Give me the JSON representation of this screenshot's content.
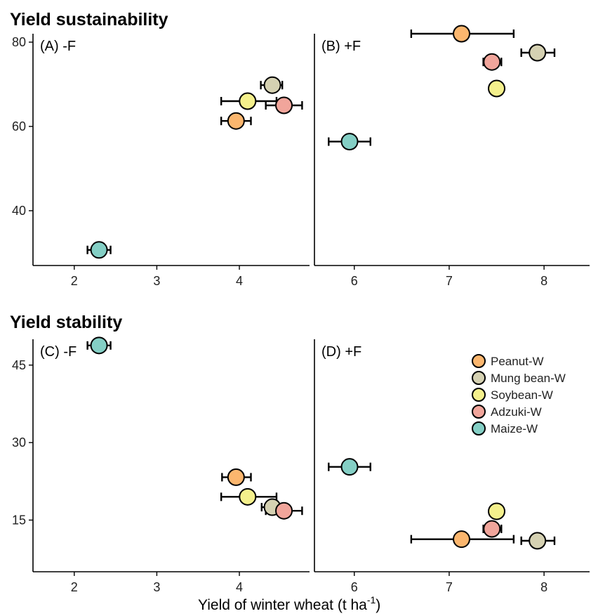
{
  "colors": {
    "Peanut-W": "#FBB66E",
    "Mung bean-W": "#D5D1B2",
    "Soybean-W": "#F4F08C",
    "Adzuki-W": "#F1A59B",
    "Maize-W": "#84CFC5"
  },
  "x_axis_label": {
    "main": "Yield of winter wheat (t ha",
    "sup": "-1",
    "close": ")"
  },
  "legend": [
    "Peanut-W",
    "Mung bean-W",
    "Soybean-W",
    "Adzuki-W",
    "Maize-W"
  ],
  "chart_data": [
    {
      "type": "scatter",
      "section_title": "Yield sustainability",
      "panel_label": "(A) -F",
      "xlim": [
        1.5,
        4.85
      ],
      "ylim": [
        27,
        82
      ],
      "xticks": [
        2,
        3,
        4
      ],
      "yticks": [
        40,
        60,
        80
      ],
      "series": [
        {
          "name": "Peanut-W",
          "x": 3.96,
          "y": 61.3,
          "xerr": [
            3.78,
            4.14
          ]
        },
        {
          "name": "Mung bean-W",
          "x": 4.4,
          "y": 69.8,
          "xerr": [
            4.26,
            4.52
          ]
        },
        {
          "name": "Soybean-W",
          "x": 4.1,
          "y": 66.0,
          "xerr": [
            3.78,
            4.45
          ]
        },
        {
          "name": "Adzuki-W",
          "x": 4.54,
          "y": 65.0,
          "xerr": [
            4.32,
            4.76
          ]
        },
        {
          "name": "Maize-W",
          "x": 2.3,
          "y": 30.7,
          "xerr": [
            2.16,
            2.44
          ]
        }
      ]
    },
    {
      "type": "scatter",
      "section_title": "",
      "panel_label": "(B) +F",
      "xlim": [
        5.58,
        8.48
      ],
      "ylim": [
        27,
        82
      ],
      "xticks": [
        6,
        7,
        8
      ],
      "yticks": [],
      "series": [
        {
          "name": "Peanut-W",
          "x": 7.13,
          "y": 82.0,
          "xerr": [
            6.6,
            7.68
          ]
        },
        {
          "name": "Mung bean-W",
          "x": 7.93,
          "y": 77.5,
          "xerr": [
            7.76,
            8.11
          ]
        },
        {
          "name": "Soybean-W",
          "x": 7.5,
          "y": 69.0,
          "xerr": [
            7.44,
            7.55
          ]
        },
        {
          "name": "Adzuki-W",
          "x": 7.45,
          "y": 75.3,
          "xerr": [
            7.36,
            7.55
          ]
        },
        {
          "name": "Maize-W",
          "x": 5.95,
          "y": 56.4,
          "xerr": [
            5.73,
            6.17
          ]
        }
      ]
    },
    {
      "type": "scatter",
      "section_title": "Yield stability",
      "panel_label": "(C) -F",
      "xlim": [
        1.5,
        4.85
      ],
      "ylim": [
        5,
        50
      ],
      "xticks": [
        2,
        3,
        4
      ],
      "yticks": [
        15,
        30,
        45
      ],
      "series": [
        {
          "name": "Peanut-W",
          "x": 3.96,
          "y": 23.3,
          "xerr": [
            3.79,
            4.14
          ]
        },
        {
          "name": "Mung bean-W",
          "x": 4.4,
          "y": 17.5,
          "xerr": [
            4.27,
            4.55
          ]
        },
        {
          "name": "Soybean-W",
          "x": 4.1,
          "y": 19.5,
          "xerr": [
            3.78,
            4.45
          ]
        },
        {
          "name": "Adzuki-W",
          "x": 4.54,
          "y": 16.8,
          "xerr": [
            4.32,
            4.76
          ]
        },
        {
          "name": "Maize-W",
          "x": 2.3,
          "y": 48.8,
          "xerr": [
            2.16,
            2.44
          ]
        }
      ]
    },
    {
      "type": "scatter",
      "section_title": "",
      "panel_label": "(D) +F",
      "xlim": [
        5.58,
        8.48
      ],
      "ylim": [
        5,
        50
      ],
      "xticks": [
        6,
        7,
        8
      ],
      "yticks": [],
      "series": [
        {
          "name": "Peanut-W",
          "x": 7.13,
          "y": 11.3,
          "xerr": [
            6.6,
            7.68
          ]
        },
        {
          "name": "Mung bean-W",
          "x": 7.93,
          "y": 11.0,
          "xerr": [
            7.76,
            8.11
          ]
        },
        {
          "name": "Soybean-W",
          "x": 7.5,
          "y": 16.7,
          "xerr": [
            7.45,
            7.55
          ]
        },
        {
          "name": "Adzuki-W",
          "x": 7.45,
          "y": 13.3,
          "xerr": [
            7.36,
            7.55
          ]
        },
        {
          "name": "Maize-W",
          "x": 5.95,
          "y": 25.3,
          "xerr": [
            5.73,
            6.17
          ]
        }
      ]
    }
  ]
}
